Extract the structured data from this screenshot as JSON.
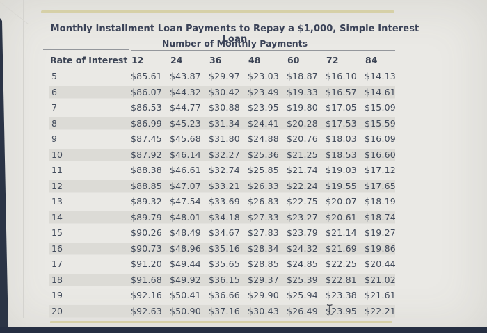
{
  "page": {
    "title": "Monthly Installment Loan Payments to Repay a $1,000, Simple Interest Loan",
    "subtitle": "Number of Monthly Payments"
  },
  "table": {
    "rate_header": "Rate of Interest",
    "payment_columns": [
      "12",
      "24",
      "36",
      "48",
      "60",
      "72",
      "84"
    ],
    "rows": [
      {
        "rate": "5",
        "values": [
          "$85.61",
          "$43.87",
          "$29.97",
          "$23.03",
          "$18.87",
          "$16.10",
          "$14.13"
        ]
      },
      {
        "rate": "6",
        "values": [
          "$86.07",
          "$44.32",
          "$30.42",
          "$23.49",
          "$19.33",
          "$16.57",
          "$14.61"
        ]
      },
      {
        "rate": "7",
        "values": [
          "$86.53",
          "$44.77",
          "$30.88",
          "$23.95",
          "$19.80",
          "$17.05",
          "$15.09"
        ]
      },
      {
        "rate": "8",
        "values": [
          "$86.99",
          "$45.23",
          "$31.34",
          "$24.41",
          "$20.28",
          "$17.53",
          "$15.59"
        ]
      },
      {
        "rate": "9",
        "values": [
          "$87.45",
          "$45.68",
          "$31.80",
          "$24.88",
          "$20.76",
          "$18.03",
          "$16.09"
        ]
      },
      {
        "rate": "10",
        "values": [
          "$87.92",
          "$46.14",
          "$32.27",
          "$25.36",
          "$21.25",
          "$18.53",
          "$16.60"
        ]
      },
      {
        "rate": "11",
        "values": [
          "$88.38",
          "$46.61",
          "$32.74",
          "$25.85",
          "$21.74",
          "$19.03",
          "$17.12"
        ]
      },
      {
        "rate": "12",
        "values": [
          "$88.85",
          "$47.07",
          "$33.21",
          "$26.33",
          "$22.24",
          "$19.55",
          "$17.65"
        ]
      },
      {
        "rate": "13",
        "values": [
          "$89.32",
          "$47.54",
          "$33.69",
          "$26.83",
          "$22.75",
          "$20.07",
          "$18.19"
        ]
      },
      {
        "rate": "14",
        "values": [
          "$89.79",
          "$48.01",
          "$34.18",
          "$27.33",
          "$23.27",
          "$20.61",
          "$18.74"
        ]
      },
      {
        "rate": "15",
        "values": [
          "$90.26",
          "$48.49",
          "$34.67",
          "$27.83",
          "$23.79",
          "$21.14",
          "$19.27"
        ]
      },
      {
        "rate": "16",
        "values": [
          "$90.73",
          "$48.96",
          "$35.16",
          "$28.34",
          "$24.32",
          "$21.69",
          "$19.86"
        ]
      },
      {
        "rate": "17",
        "values": [
          "$91.20",
          "$49.44",
          "$35.65",
          "$28.85",
          "$24.85",
          "$22.25",
          "$20.44"
        ]
      },
      {
        "rate": "18",
        "values": [
          "$91.68",
          "$49.92",
          "$36.15",
          "$29.37",
          "$25.39",
          "$22.81",
          "$21.02"
        ]
      },
      {
        "rate": "19",
        "values": [
          "$92.16",
          "$50.41",
          "$36.66",
          "$29.90",
          "$25.94",
          "$23.38",
          "$21.61"
        ]
      },
      {
        "rate": "20",
        "values": [
          "$92.63",
          "$50.90",
          "$37.16",
          "$30.43",
          "$26.49",
          "$23.95",
          "$22.21"
        ]
      }
    ]
  },
  "icons": {
    "cursor": "text-ibeam"
  },
  "colors": {
    "accent_bar": "#d6d0a7",
    "footer_bar": "#262f42",
    "screen_edge": "#2b3445",
    "row_shade": "#dcdbd6",
    "text": "#414a5a",
    "heading_text": "#3a4257",
    "background": "#eae9e5"
  }
}
